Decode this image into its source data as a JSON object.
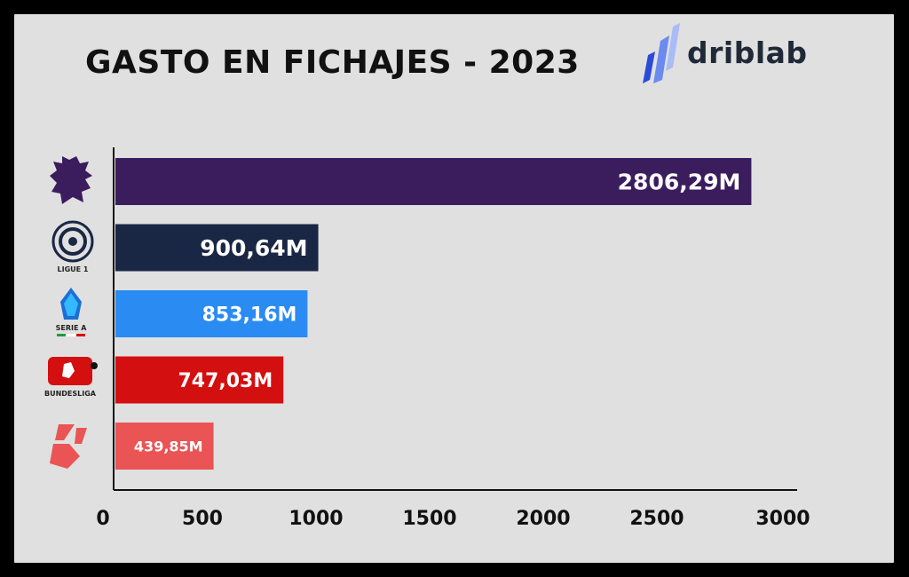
{
  "chart_data": {
    "type": "bar",
    "orientation": "horizontal",
    "title": "GASTO EN FICHAJES - 2023",
    "categories": [
      "Premier League",
      "Ligue 1",
      "Serie A",
      "Bundesliga",
      "LaLiga"
    ],
    "values": [
      2806.29,
      900.64,
      853.16,
      747.03,
      439.85
    ],
    "value_labels": [
      "2806,29M",
      "900,64M",
      "853,16M",
      "747,03M",
      "439,85M"
    ],
    "colors": [
      "#3b1d5e",
      "#1a2744",
      "#2a8bf2",
      "#d40f0f",
      "#ea5455"
    ],
    "xlim": [
      0,
      3000
    ],
    "xticks": [
      "0",
      "500",
      "1000",
      "1500",
      "2000",
      "2500",
      "3000"
    ],
    "grid": false,
    "legend": "none"
  },
  "brand": {
    "name": "driblab",
    "accent": "#2a4bd7"
  },
  "logos": [
    {
      "icon": "premier-league-lion-icon",
      "caption": ""
    },
    {
      "icon": "ligue-1-ball-icon",
      "caption": "LIGUE 1"
    },
    {
      "icon": "serie-a-icon",
      "caption": "SERIE A"
    },
    {
      "icon": "bundesliga-icon",
      "caption": "BUNDESLIGA"
    },
    {
      "icon": "laliga-icon",
      "caption": ""
    }
  ]
}
